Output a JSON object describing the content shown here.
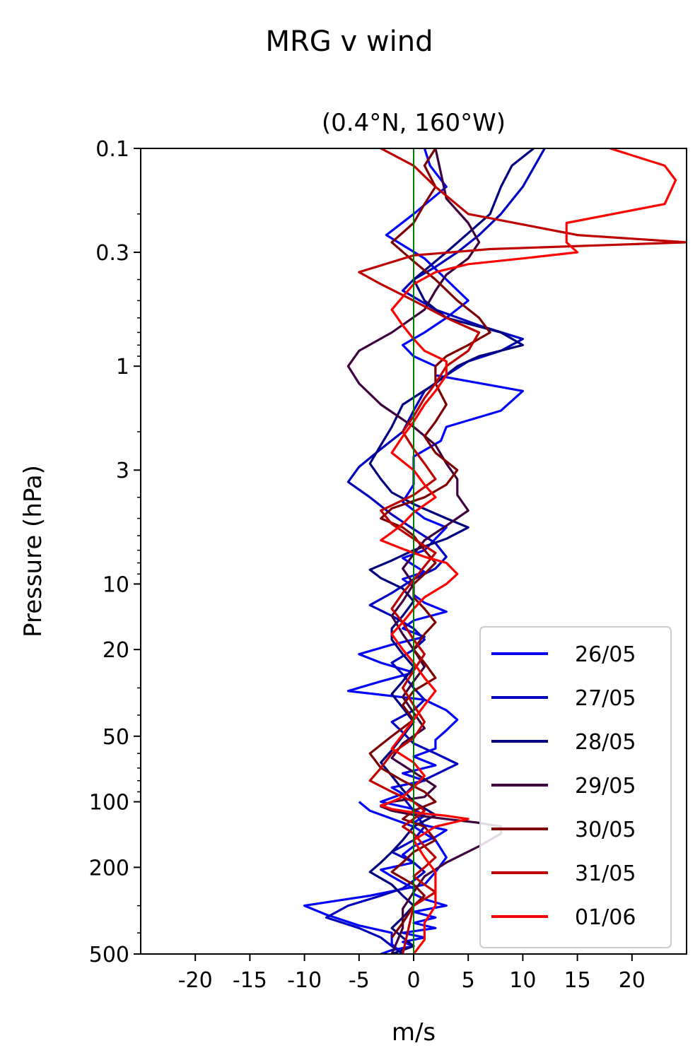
{
  "chart_data": {
    "type": "line",
    "title": "MRG v wind",
    "subtitle": "(0.4°N, 160°W)",
    "xlabel": "m/s",
    "ylabel": "Pressure (hPa)",
    "xlim": [
      -25,
      25
    ],
    "ylim": [
      500,
      0.1
    ],
    "y_scale": "log",
    "y_inverted": true,
    "x_ticks": [
      -20,
      -15,
      -10,
      -5,
      0,
      5,
      10,
      15,
      20
    ],
    "x_tick_labels": [
      "-20",
      "-15",
      "-10",
      "-5",
      "0",
      "5",
      "10",
      "15",
      "20"
    ],
    "y_ticks": [
      0.1,
      0.3,
      1,
      3,
      10,
      20,
      50,
      100,
      200,
      500
    ],
    "y_tick_labels": [
      "0.1",
      "0.3",
      "1",
      "3",
      "10",
      "20",
      "50",
      "100",
      "200",
      "500"
    ],
    "reference_line": {
      "x": 0,
      "color": "#007f00"
    },
    "legend": "lower-right",
    "grid": false,
    "series": [
      {
        "name": "26/05",
        "color": "#0000ff",
        "x": [
          1,
          1.5,
          3,
          0,
          -2.5,
          1,
          3,
          5,
          3,
          1,
          -1,
          0,
          2,
          2,
          10,
          8,
          3,
          2.5,
          0,
          0,
          0,
          -1,
          1,
          3,
          2,
          1,
          -1,
          0,
          1,
          -1,
          0,
          0,
          1,
          3,
          0,
          -1,
          1,
          -2,
          -5,
          -3,
          0,
          -3,
          -6,
          1,
          3,
          4,
          3,
          2,
          2,
          0,
          2,
          -1,
          1,
          -2,
          -1,
          -3,
          0,
          1,
          0,
          3,
          2,
          0,
          -1,
          0,
          -3,
          -2,
          -1,
          0,
          0,
          1,
          3,
          0,
          2,
          0,
          2,
          -1,
          1,
          -1,
          0,
          -2,
          -3,
          -5,
          -4,
          0,
          2,
          3,
          2,
          1,
          -4,
          -10,
          -8,
          -5,
          -2,
          -2,
          -1
        ],
        "p": [
          0.1,
          0.12,
          0.15,
          0.2,
          0.25,
          0.32,
          0.4,
          0.5,
          0.6,
          0.7,
          0.8,
          0.9,
          1.0,
          1.1,
          1.3,
          1.6,
          1.9,
          2.2,
          2.6,
          3.0,
          3.5,
          4.2,
          5,
          5.5,
          6.2,
          7,
          7.6,
          8.2,
          8.8,
          9.5,
          10.3,
          11.2,
          12.2,
          13.4,
          14.7,
          16,
          17.5,
          19,
          21,
          23,
          25.5,
          28,
          31,
          34,
          38,
          42,
          47,
          52,
          57,
          62,
          68,
          74,
          80,
          86,
          92,
          100,
          108,
          116,
          125,
          135,
          145,
          160,
          175,
          190,
          205,
          220,
          235,
          250,
          265,
          280,
          300,
          320,
          340,
          360,
          380,
          400,
          420,
          440,
          460,
          480,
          500,
          100,
          110,
          130,
          150,
          180,
          210,
          240,
          270,
          300,
          330,
          370,
          400,
          450,
          500
        ]
      },
      {
        "name": "27/05",
        "color": "#0000bf",
        "x": [
          12,
          10,
          8,
          6,
          4,
          2,
          0,
          -1,
          2,
          6,
          10,
          8,
          5,
          3,
          1,
          0,
          -1,
          -3,
          -5,
          -6,
          -4,
          -2,
          0,
          2,
          3,
          2,
          0,
          -2,
          -4,
          -2,
          0,
          1,
          0,
          -2,
          -1,
          0,
          1,
          0,
          -2,
          -1,
          0,
          2,
          4,
          2,
          0,
          -1,
          0,
          1,
          0,
          -2,
          0,
          1,
          0,
          -1,
          -3,
          -6,
          -8,
          -5,
          -3,
          -2,
          -1
        ],
        "p": [
          0.1,
          0.15,
          0.2,
          0.25,
          0.3,
          0.35,
          0.4,
          0.45,
          0.55,
          0.65,
          0.75,
          0.85,
          0.95,
          1.1,
          1.3,
          1.6,
          2.0,
          2.4,
          2.9,
          3.4,
          4,
          4.8,
          5.6,
          6.5,
          7.5,
          8.5,
          9.5,
          11,
          12.5,
          14,
          16,
          18,
          20,
          23,
          26,
          30,
          34,
          38,
          43,
          48,
          54,
          60,
          67,
          75,
          84,
          95,
          110,
          130,
          150,
          170,
          190,
          210,
          230,
          250,
          270,
          300,
          340,
          380,
          420,
          460,
          500
        ]
      },
      {
        "name": "28/05",
        "color": "#00007f",
        "x": [
          11,
          9,
          8,
          7,
          3,
          0,
          1,
          3,
          8,
          10,
          6,
          4,
          2,
          -1,
          -2,
          -3,
          -4,
          -3,
          -2,
          0,
          3,
          5,
          3,
          0,
          -2,
          -4,
          -3,
          -1,
          0,
          -1,
          -2,
          -2,
          -1,
          0,
          -1,
          -2,
          -1,
          0,
          -1,
          -2,
          -3,
          -2,
          -1,
          0,
          2,
          0,
          -1,
          -2,
          -3,
          -4,
          -2,
          -1,
          0,
          -1,
          -2,
          -1,
          0,
          -1,
          -2
        ],
        "p": [
          0.1,
          0.12,
          0.15,
          0.2,
          0.3,
          0.4,
          0.5,
          0.6,
          0.7,
          0.8,
          0.9,
          1.0,
          1.2,
          1.5,
          1.9,
          2.3,
          2.8,
          3.3,
          3.8,
          4.3,
          5,
          5.5,
          6.2,
          7,
          7.8,
          8.6,
          9.4,
          10.5,
          12,
          14,
          16,
          18,
          21,
          24,
          28,
          32,
          37,
          43,
          50,
          58,
          66,
          76,
          88,
          100,
          115,
          130,
          150,
          170,
          190,
          210,
          240,
          270,
          300,
          340,
          380,
          420,
          460,
          480,
          500
        ]
      },
      {
        "name": "29/05",
        "color": "#3f003f",
        "x": [
          2,
          2.5,
          3,
          5,
          6,
          5,
          3,
          2,
          1,
          -2,
          -5,
          -6,
          -5,
          -3,
          0,
          2,
          3,
          4,
          4,
          5,
          3,
          1,
          0,
          -1,
          0,
          -1,
          -2,
          -1,
          0,
          1,
          0,
          -1,
          0,
          1,
          -1,
          -2,
          0,
          2,
          1,
          -2,
          -3,
          -2,
          0,
          3,
          6,
          8,
          8,
          6,
          3,
          1,
          0,
          -1,
          -1,
          -2
        ],
        "p": [
          0.1,
          0.13,
          0.17,
          0.22,
          0.27,
          0.32,
          0.38,
          0.45,
          0.55,
          0.7,
          0.85,
          1.0,
          1.2,
          1.5,
          1.9,
          2.3,
          2.8,
          3.3,
          3.9,
          4.6,
          5.4,
          6.3,
          7.3,
          8.5,
          10,
          12,
          14,
          17,
          20,
          24,
          28,
          33,
          39,
          46,
          54,
          63,
          73,
          85,
          95,
          100,
          105,
          110,
          115,
          120,
          125,
          130,
          140,
          160,
          190,
          220,
          260,
          310,
          380,
          500
        ]
      },
      {
        "name": "30/05",
        "color": "#7f0000",
        "x": [
          2,
          1,
          2,
          1,
          0,
          -2,
          0,
          2,
          4,
          6,
          7,
          5,
          3,
          2,
          2,
          3,
          2,
          1,
          2,
          4,
          3,
          1,
          -2,
          -3,
          -1,
          0,
          1,
          2,
          1,
          0,
          0,
          1,
          2,
          1,
          0,
          1,
          2,
          0,
          -1,
          0,
          -2,
          -4,
          -3,
          -1,
          1,
          2,
          0,
          -1,
          1,
          2,
          0,
          -1,
          -2,
          0,
          1,
          0,
          -1,
          -2
        ],
        "p": [
          0.1,
          0.12,
          0.15,
          0.18,
          0.22,
          0.27,
          0.33,
          0.4,
          0.5,
          0.6,
          0.7,
          0.8,
          0.9,
          1.0,
          1.2,
          1.5,
          1.8,
          2.1,
          2.5,
          3,
          3.5,
          4,
          4.5,
          5,
          5.5,
          6,
          7,
          8,
          9,
          10,
          11.5,
          13,
          15,
          17,
          20,
          23,
          27,
          31,
          36,
          42,
          50,
          60,
          70,
          80,
          90,
          100,
          110,
          120,
          130,
          150,
          170,
          190,
          210,
          240,
          270,
          300,
          360,
          420,
          500
        ]
      },
      {
        "name": "31/05",
        "color": "#bf0000",
        "x": [
          -3,
          0,
          2,
          5,
          15,
          25,
          7,
          0,
          -5,
          -3,
          0,
          3,
          6,
          5,
          3,
          2,
          1,
          0,
          -1,
          0,
          1,
          2,
          0,
          -3,
          -2,
          0,
          2,
          1,
          0,
          -1,
          -2,
          -1,
          0,
          1,
          0,
          -1,
          0,
          1,
          0,
          -2,
          -3,
          -4,
          -2,
          0,
          1,
          0,
          -1,
          0,
          1,
          2,
          1,
          0,
          1,
          2,
          1,
          0,
          -1
        ],
        "p": [
          0.1,
          0.12,
          0.15,
          0.2,
          0.25,
          0.27,
          0.29,
          0.31,
          0.37,
          0.42,
          0.5,
          0.6,
          0.7,
          0.85,
          1.0,
          1.2,
          1.4,
          1.7,
          2.0,
          2.4,
          2.8,
          3.3,
          3.9,
          4.6,
          5.3,
          6.2,
          7.2,
          8.3,
          9.6,
          11,
          13,
          15,
          18,
          21,
          25,
          30,
          36,
          43,
          51,
          60,
          70,
          80,
          90,
          100,
          110,
          120,
          130,
          140,
          160,
          180,
          200,
          220,
          240,
          260,
          280,
          300,
          500
        ]
      },
      {
        "name": "01/06",
        "color": "#ff0000",
        "x": [
          18,
          23,
          24,
          23,
          14,
          14,
          15,
          10,
          5,
          2,
          0,
          -1,
          -2,
          -1,
          0,
          1,
          3,
          3,
          2,
          1,
          0,
          -1,
          -2,
          0,
          1,
          2,
          0,
          -1,
          -2,
          -3,
          -1,
          1,
          3,
          4,
          3,
          1,
          0,
          -1,
          -2,
          -1,
          0,
          1,
          2,
          1,
          0,
          -1,
          -2,
          0,
          1,
          0,
          -1,
          -2,
          -3,
          -2,
          0,
          3,
          5,
          2,
          0,
          1,
          2,
          2,
          2,
          1,
          1,
          0
        ],
        "p": [
          0.1,
          0.12,
          0.14,
          0.18,
          0.22,
          0.27,
          0.3,
          0.32,
          0.34,
          0.37,
          0.42,
          0.48,
          0.55,
          0.65,
          0.75,
          0.85,
          0.95,
          1.1,
          1.3,
          1.5,
          1.8,
          2.1,
          2.5,
          3.0,
          3.5,
          4.0,
          4.7,
          5.3,
          5.8,
          6.3,
          6.9,
          7.5,
          8,
          9,
          10,
          11.5,
          13,
          15,
          17,
          20,
          23,
          27,
          31,
          36,
          42,
          49,
          57,
          66,
          76,
          86,
          95,
          100,
          104,
          108,
          112,
          116,
          120,
          130,
          150,
          180,
          210,
          250,
          300,
          360,
          430,
          500
        ]
      }
    ]
  }
}
